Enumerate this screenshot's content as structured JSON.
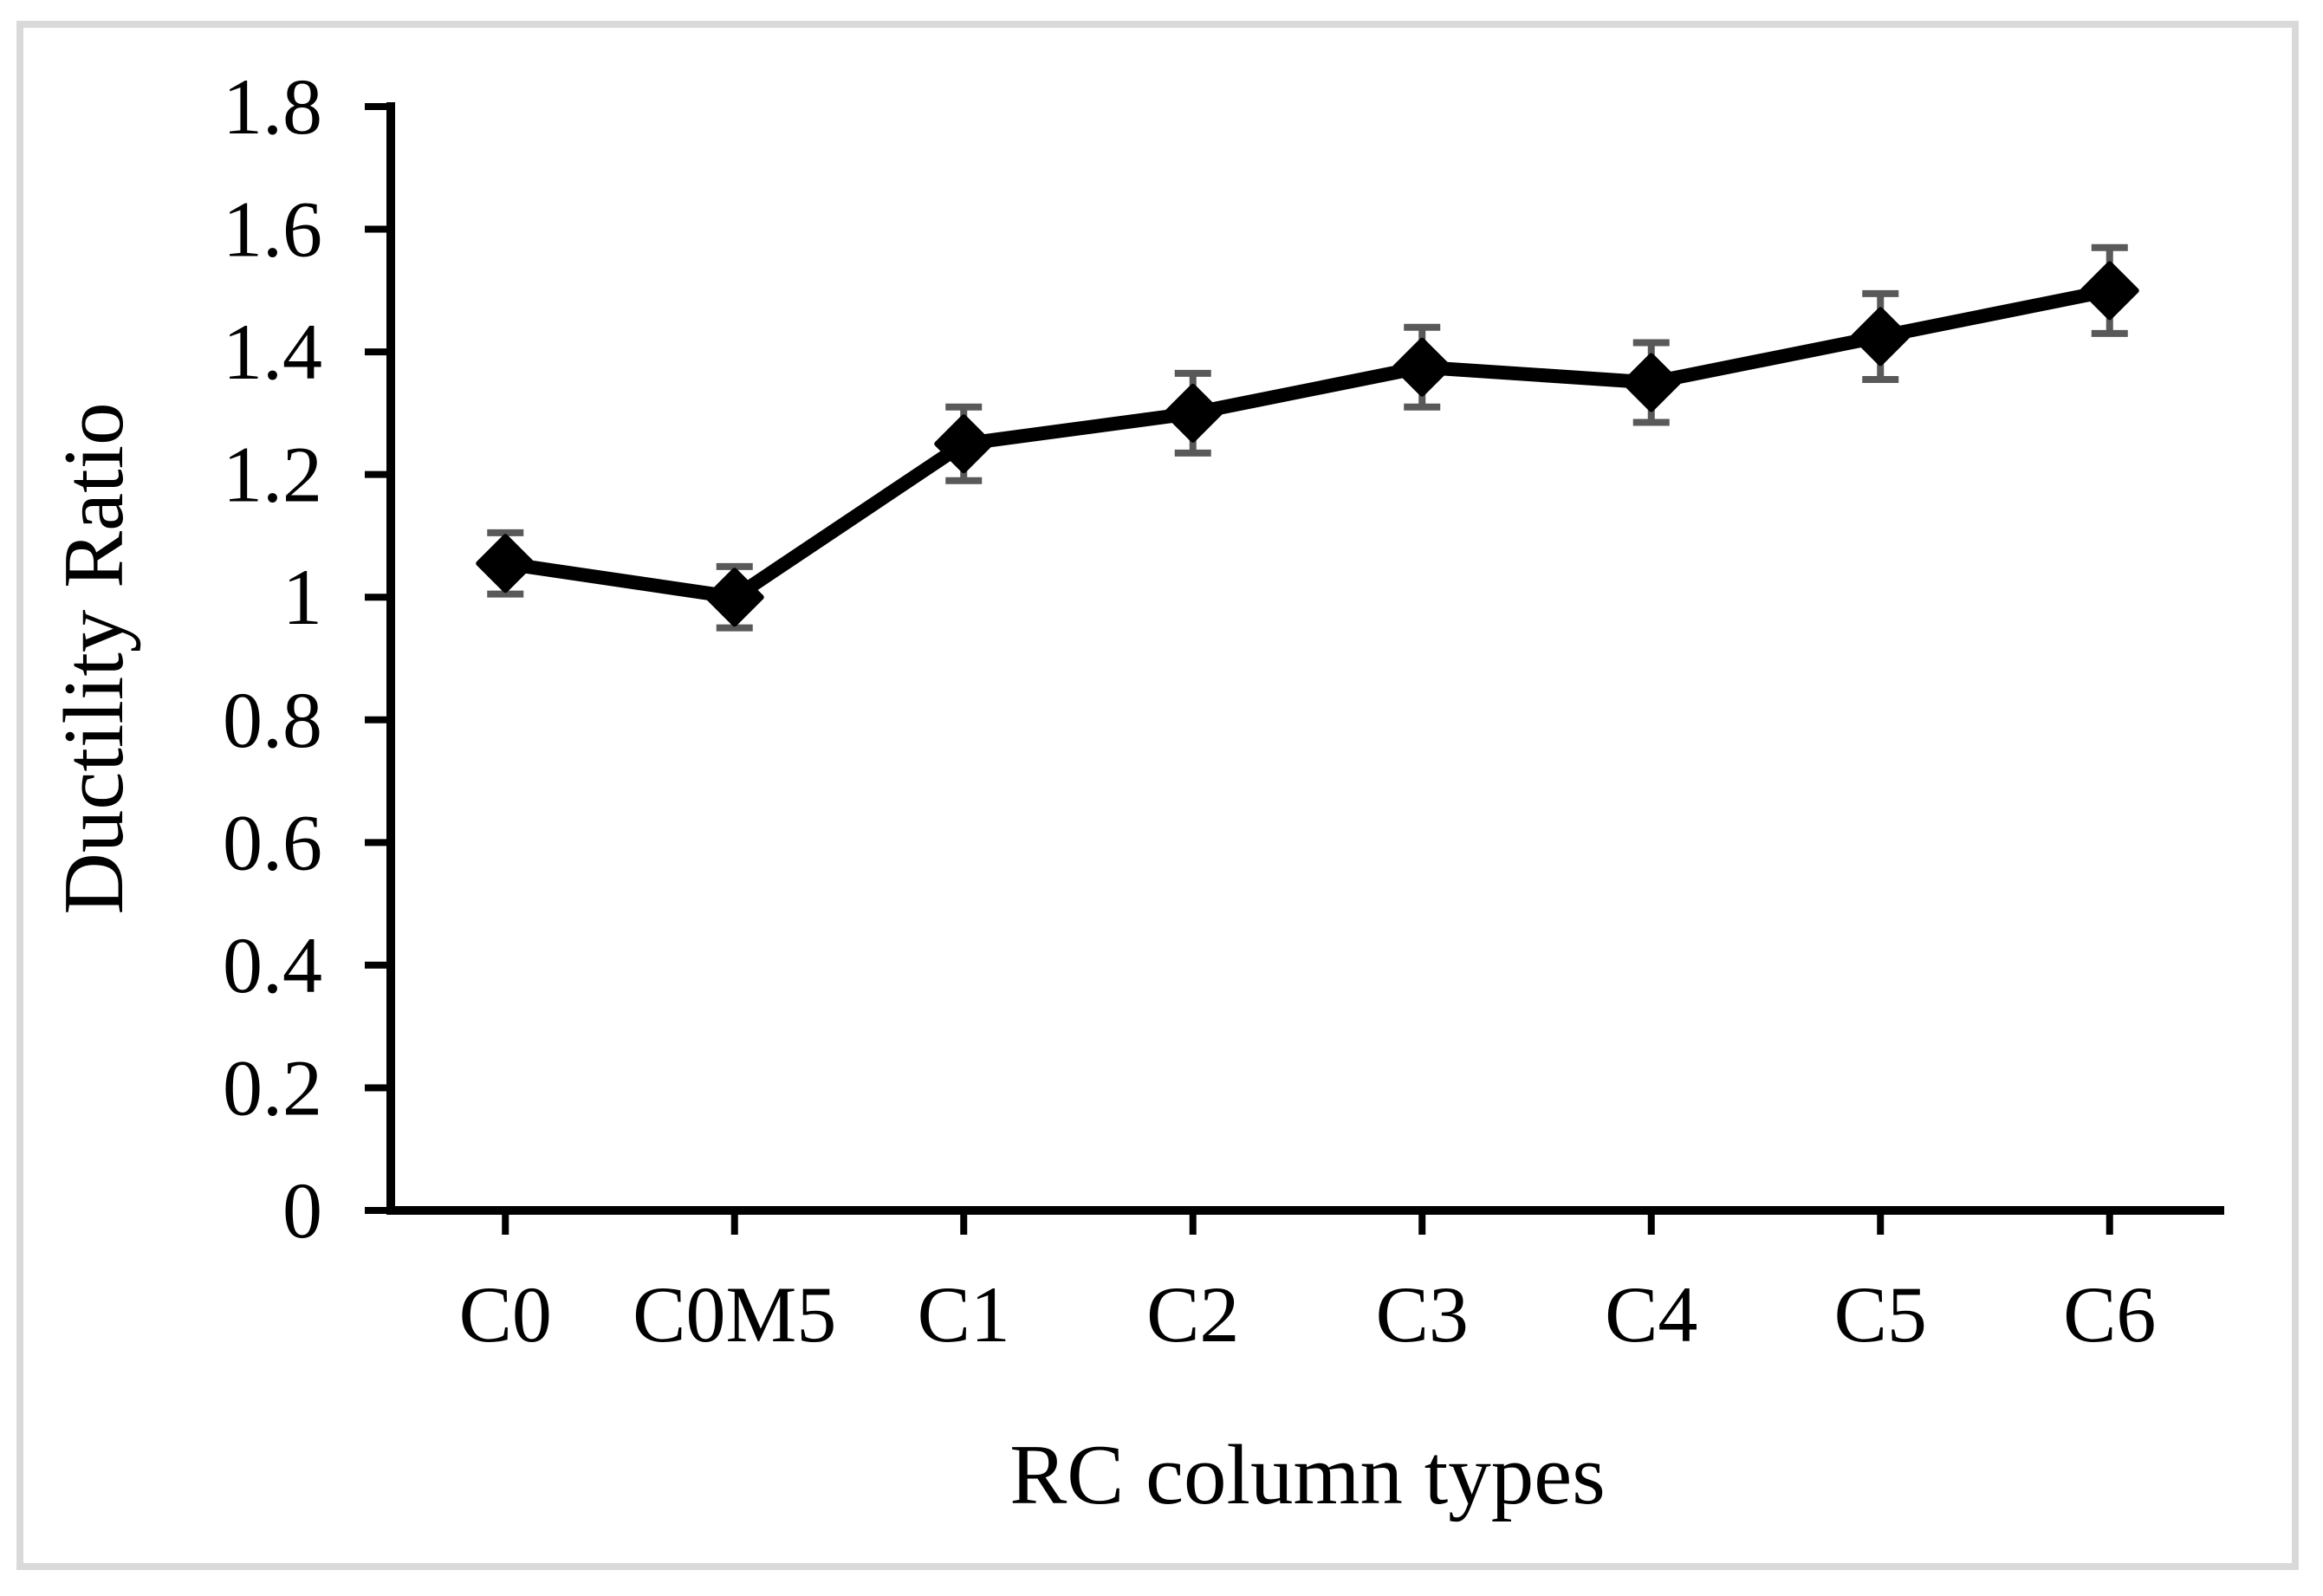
{
  "figure": {
    "background_color": "#ffffff",
    "frame_border_color": "#d9d9d9"
  },
  "chart_data": {
    "type": "line",
    "title": "",
    "xlabel": "RC column types",
    "ylabel": "Ductility Ratio",
    "categories": [
      "C0",
      "C0M5",
      "C1",
      "C2",
      "C3",
      "C4",
      "C5",
      "C6"
    ],
    "series": [
      {
        "name": "Ductility Ratio",
        "values": [
          1.055,
          1.0,
          1.25,
          1.3,
          1.375,
          1.35,
          1.425,
          1.5
        ],
        "error_bars": [
          0.05,
          0.05,
          0.06,
          0.065,
          0.065,
          0.065,
          0.07,
          0.07
        ]
      }
    ],
    "ylim": [
      0,
      1.8
    ],
    "y_tick_step": 0.2,
    "y_tick_labels": [
      "0",
      "0.2",
      "0.4",
      "0.6",
      "0.8",
      "1",
      "1.2",
      "1.4",
      "1.6",
      "1.8"
    ],
    "grid": false,
    "legend": "none",
    "marker": "diamond",
    "line_color": "#000000",
    "marker_color": "#000000",
    "error_bar_color": "#595959",
    "axis_color": "#000000"
  }
}
